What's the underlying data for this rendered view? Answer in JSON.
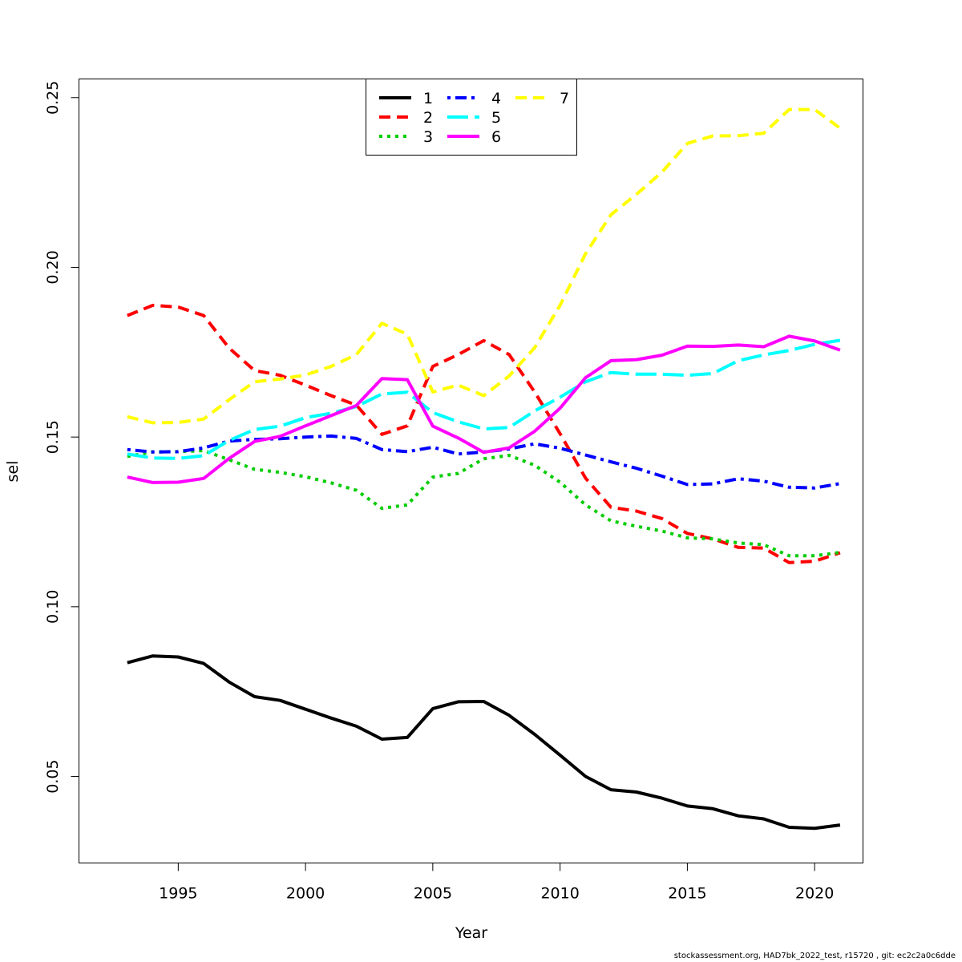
{
  "chart_data": {
    "type": "line",
    "xlabel": "Year",
    "ylabel": "sel",
    "xlim": [
      1991.1,
      2021.9
    ],
    "ylim": [
      0.0245,
      0.2555
    ],
    "x_ticks": [
      1995,
      2000,
      2005,
      2010,
      2015,
      2020
    ],
    "y_ticks": [
      0.05,
      0.1,
      0.15,
      0.2,
      0.25
    ],
    "y_tick_labels": [
      "0.05",
      "0.10",
      "0.15",
      "0.20",
      "0.25"
    ],
    "grid": false,
    "legend_position": "top-center",
    "x": [
      1993,
      1994,
      1995,
      1996,
      1997,
      1998,
      1999,
      2000,
      2001,
      2002,
      2003,
      2004,
      2005,
      2006,
      2007,
      2008,
      2009,
      2010,
      2011,
      2012,
      2013,
      2014,
      2015,
      2016,
      2017,
      2018,
      2019,
      2020,
      2021
    ],
    "series": [
      {
        "name": "1",
        "color": "#000000",
        "dash": "solid",
        "values": [
          0.0835,
          0.0855,
          0.0852,
          0.0833,
          0.0778,
          0.0735,
          0.0724,
          0.0698,
          0.0672,
          0.0648,
          0.061,
          0.0615,
          0.07,
          0.072,
          0.0721,
          0.068,
          0.0624,
          0.0563,
          0.05,
          0.0461,
          0.0454,
          0.0436,
          0.0413,
          0.0405,
          0.0384,
          0.0375,
          0.035,
          0.0347,
          0.0357
        ]
      },
      {
        "name": "2",
        "color": "#ff0000",
        "dash": "dashed",
        "values": [
          0.1858,
          0.1888,
          0.1883,
          0.1858,
          0.1762,
          0.1696,
          0.1682,
          0.1653,
          0.1622,
          0.1594,
          0.1508,
          0.1533,
          0.1708,
          0.1743,
          0.1784,
          0.1743,
          0.1633,
          0.151,
          0.1379,
          0.1293,
          0.1282,
          0.126,
          0.1216,
          0.12,
          0.1175,
          0.1173,
          0.113,
          0.1134,
          0.1159
        ]
      },
      {
        "name": "3",
        "color": "#00cd00",
        "dash": "dotted",
        "values": [
          0.1443,
          0.1456,
          0.1457,
          0.146,
          0.1433,
          0.1405,
          0.1396,
          0.1383,
          0.1365,
          0.1343,
          0.129,
          0.13,
          0.1382,
          0.1393,
          0.1436,
          0.1446,
          0.1417,
          0.1367,
          0.13,
          0.1253,
          0.1237,
          0.1223,
          0.1203,
          0.12,
          0.1188,
          0.1183,
          0.115,
          0.115,
          0.116
        ]
      },
      {
        "name": "4",
        "color": "#0000ff",
        "dash": "dotdash",
        "values": [
          0.1463,
          0.1456,
          0.1457,
          0.1468,
          0.1488,
          0.1493,
          0.1495,
          0.15,
          0.1503,
          0.1496,
          0.1463,
          0.1457,
          0.147,
          0.145,
          0.1456,
          0.1465,
          0.148,
          0.1467,
          0.1447,
          0.1427,
          0.1408,
          0.1385,
          0.136,
          0.1362,
          0.1377,
          0.137,
          0.1352,
          0.135,
          0.1363
        ]
      },
      {
        "name": "5",
        "color": "#00ffff",
        "dash": "longdash",
        "values": [
          0.145,
          0.1438,
          0.1437,
          0.1445,
          0.149,
          0.1522,
          0.1532,
          0.1557,
          0.157,
          0.159,
          0.1627,
          0.1632,
          0.1572,
          0.1545,
          0.1524,
          0.1528,
          0.1577,
          0.1617,
          0.1663,
          0.169,
          0.1685,
          0.1685,
          0.1682,
          0.1687,
          0.1725,
          0.1742,
          0.1755,
          0.1773,
          0.1785
        ]
      },
      {
        "name": "6",
        "color": "#ff00ff",
        "dash": "solid",
        "values": [
          0.1382,
          0.1366,
          0.1367,
          0.1378,
          0.1437,
          0.1487,
          0.1502,
          0.1533,
          0.1563,
          0.1593,
          0.1672,
          0.1669,
          0.1532,
          0.1497,
          0.1455,
          0.1468,
          0.1517,
          0.1585,
          0.1675,
          0.1725,
          0.1728,
          0.1741,
          0.1768,
          0.1767,
          0.1771,
          0.1766,
          0.1797,
          0.1783,
          0.1756
        ]
      },
      {
        "name": "7",
        "color": "#ffff00",
        "dash": "dashed",
        "values": [
          0.156,
          0.1542,
          0.1543,
          0.1553,
          0.161,
          0.1663,
          0.1671,
          0.1683,
          0.1708,
          0.1743,
          0.1835,
          0.1803,
          0.1633,
          0.1653,
          0.1622,
          0.168,
          0.1763,
          0.1888,
          0.204,
          0.2155,
          0.2215,
          0.228,
          0.2365,
          0.2387,
          0.2388,
          0.2395,
          0.2465,
          0.2465,
          0.241
        ]
      }
    ]
  },
  "footer": "stockassessment.org, HAD7bk_2022_test, r15720 , git: ec2c2a0c6dde"
}
